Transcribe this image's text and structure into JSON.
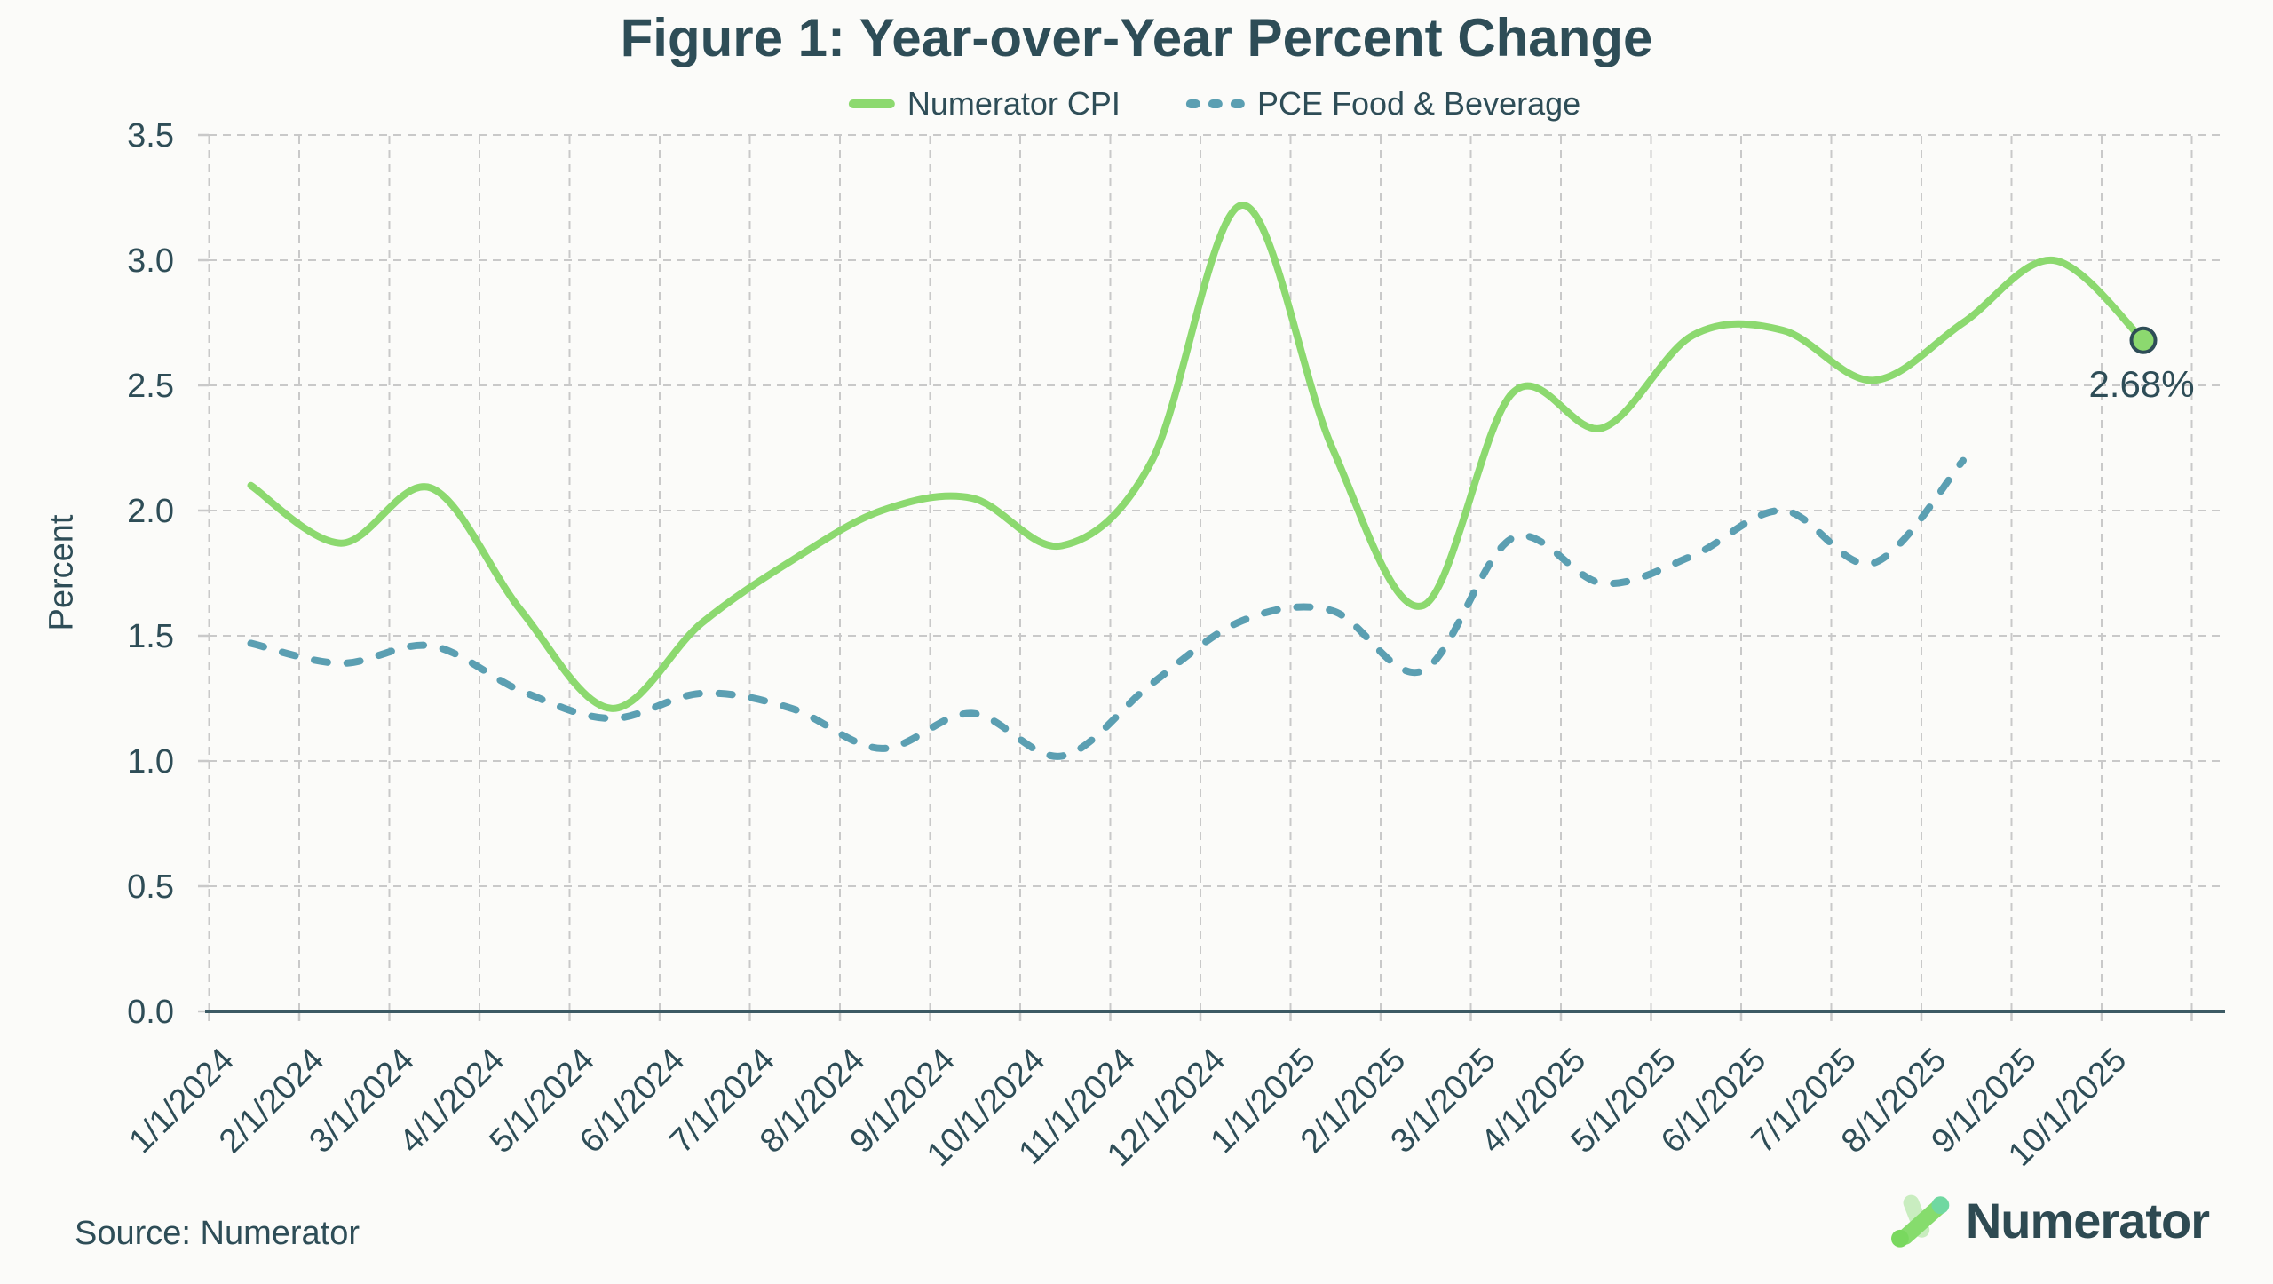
{
  "header": {
    "title": "Figure 1: Year-over-Year Percent Change"
  },
  "legend": {
    "items": [
      {
        "label": "Numerator CPI",
        "color": "#8cd96f",
        "style": "solid"
      },
      {
        "label": "PCE Food & Beverage",
        "color": "#5b9fb2",
        "style": "dashed"
      }
    ]
  },
  "chart_data": {
    "type": "line",
    "title": "Figure 1: Year-over-Year Percent Change",
    "xlabel": "",
    "ylabel": "Percent",
    "ylim": [
      0.0,
      3.5
    ],
    "y_ticks": [
      "0.0",
      "0.5",
      "1.0",
      "1.5",
      "2.0",
      "2.5",
      "3.0",
      "3.5"
    ],
    "grid": "dashed",
    "legend_position": "top-center",
    "categories": [
      "1/1/2024",
      "2/1/2024",
      "3/1/2024",
      "4/1/2024",
      "5/1/2024",
      "6/1/2024",
      "7/1/2024",
      "8/1/2024",
      "9/1/2024",
      "10/1/2024",
      "11/1/2024",
      "12/1/2024",
      "1/1/2025",
      "2/1/2025",
      "3/1/2025",
      "4/1/2025",
      "5/1/2025",
      "6/1/2025",
      "7/1/2025",
      "8/1/2025",
      "9/1/2025",
      "10/1/2025"
    ],
    "series": [
      {
        "name": "Numerator CPI",
        "color": "#8cd96f",
        "style": "solid",
        "values": [
          2.1,
          1.87,
          2.09,
          1.6,
          1.21,
          1.55,
          1.8,
          2.0,
          2.05,
          1.86,
          2.2,
          3.22,
          2.25,
          1.62,
          2.47,
          2.33,
          2.7,
          2.72,
          2.52,
          2.75,
          3.0,
          2.68
        ]
      },
      {
        "name": "PCE Food & Beverage",
        "color": "#5b9fb2",
        "style": "dashed",
        "values": [
          1.47,
          1.39,
          1.46,
          1.28,
          1.17,
          1.27,
          1.21,
          1.05,
          1.19,
          1.02,
          1.31,
          1.56,
          1.6,
          1.36,
          1.89,
          1.71,
          1.82,
          2.0,
          1.79,
          2.2
        ]
      }
    ],
    "annotation": "2.68%",
    "end_marker": {
      "series": "Numerator CPI",
      "category": "10/1/2025",
      "value": 2.68
    },
    "colors": {
      "grid": "#c9c9c9",
      "axis": "#3c5a64",
      "text": "#2e4d57",
      "marker_fill": "#8cd96f",
      "marker_stroke": "#2e4d57"
    }
  },
  "footer": {
    "source": "Source: Numerator",
    "logo_text": "Numerator"
  }
}
